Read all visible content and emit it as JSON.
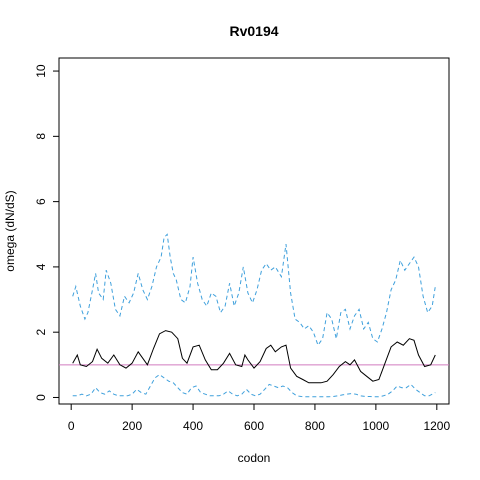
{
  "chart_data": {
    "type": "line",
    "title": "Rv0194",
    "xlabel": "codon",
    "ylabel": "omega (dN/dS)",
    "xlim": [
      -40,
      1240
    ],
    "ylim": [
      -0.2,
      10.4
    ],
    "grid": false,
    "legend": "none",
    "x_ticks": [
      0,
      200,
      400,
      600,
      800,
      1000,
      1200
    ],
    "y_ticks": [
      0,
      2,
      4,
      6,
      8,
      10
    ],
    "reference_line": {
      "y": 1.0,
      "color": "#d07bbf"
    },
    "series": [
      {
        "role": "estimate",
        "style": "solid",
        "color": "#000000",
        "x": [
          5,
          20,
          30,
          50,
          70,
          85,
          100,
          120,
          140,
          160,
          180,
          200,
          220,
          235,
          250,
          270,
          290,
          310,
          330,
          350,
          365,
          380,
          400,
          420,
          440,
          460,
          480,
          500,
          520,
          540,
          560,
          570,
          580,
          600,
          620,
          640,
          655,
          670,
          690,
          705,
          720,
          740,
          760,
          780,
          800,
          820,
          840,
          860,
          880,
          900,
          915,
          930,
          950,
          970,
          990,
          1010,
          1030,
          1050,
          1070,
          1090,
          1110,
          1125,
          1140,
          1160,
          1180,
          1195
        ],
        "y": [
          1.05,
          1.3,
          1.0,
          0.95,
          1.1,
          1.48,
          1.2,
          1.05,
          1.3,
          1.0,
          0.9,
          1.05,
          1.4,
          1.2,
          1.0,
          1.5,
          1.95,
          2.05,
          2.0,
          1.8,
          1.2,
          1.05,
          1.55,
          1.6,
          1.15,
          0.85,
          0.85,
          1.05,
          1.35,
          1.0,
          0.95,
          1.3,
          1.15,
          0.9,
          1.1,
          1.5,
          1.6,
          1.4,
          1.55,
          1.6,
          0.9,
          0.65,
          0.55,
          0.45,
          0.45,
          0.45,
          0.5,
          0.7,
          0.95,
          1.1,
          1.0,
          1.15,
          0.8,
          0.65,
          0.5,
          0.55,
          1.05,
          1.55,
          1.7,
          1.6,
          1.8,
          1.75,
          1.3,
          0.95,
          1.0,
          1.3
        ]
      },
      {
        "role": "upper-bound",
        "style": "dashed",
        "color": "#3fa0dc",
        "x": [
          5,
          15,
          30,
          45,
          55,
          70,
          80,
          90,
          105,
          115,
          130,
          145,
          160,
          175,
          190,
          205,
          220,
          235,
          250,
          265,
          280,
          295,
          305,
          315,
          325,
          335,
          345,
          360,
          375,
          390,
          400,
          415,
          430,
          445,
          460,
          475,
          490,
          505,
          520,
          535,
          550,
          565,
          580,
          595,
          610,
          625,
          640,
          655,
          670,
          690,
          705,
          720,
          735,
          750,
          765,
          780,
          795,
          810,
          825,
          840,
          855,
          870,
          885,
          900,
          915,
          930,
          945,
          960,
          975,
          990,
          1005,
          1020,
          1035,
          1050,
          1065,
          1080,
          1095,
          1110,
          1125,
          1140,
          1155,
          1170,
          1185,
          1195
        ],
        "y": [
          3.1,
          3.4,
          2.8,
          2.4,
          2.6,
          3.3,
          3.8,
          3.2,
          3.0,
          3.9,
          3.5,
          2.7,
          2.5,
          3.1,
          2.9,
          3.2,
          3.8,
          3.3,
          3.0,
          3.4,
          4.0,
          4.3,
          4.9,
          5.0,
          4.3,
          3.8,
          3.6,
          3.0,
          2.9,
          3.4,
          4.3,
          3.5,
          3.0,
          2.8,
          3.2,
          3.1,
          2.6,
          2.8,
          3.5,
          2.8,
          3.2,
          4.0,
          3.2,
          2.9,
          3.3,
          3.9,
          4.1,
          3.9,
          4.0,
          3.7,
          4.7,
          3.2,
          2.4,
          2.3,
          2.1,
          2.2,
          2.0,
          1.6,
          1.8,
          2.6,
          2.4,
          1.8,
          2.6,
          2.7,
          2.1,
          2.5,
          2.7,
          2.1,
          2.3,
          1.8,
          1.7,
          2.1,
          2.6,
          3.3,
          3.6,
          4.2,
          3.9,
          4.1,
          4.3,
          4.0,
          3.1,
          2.6,
          2.8,
          3.4
        ]
      },
      {
        "role": "lower-bound",
        "style": "dashed",
        "color": "#3fa0dc",
        "x": [
          5,
          20,
          35,
          50,
          65,
          80,
          95,
          110,
          125,
          140,
          155,
          170,
          185,
          200,
          215,
          230,
          245,
          260,
          275,
          290,
          305,
          320,
          335,
          350,
          365,
          380,
          395,
          410,
          425,
          440,
          455,
          470,
          485,
          500,
          515,
          530,
          545,
          560,
          575,
          590,
          605,
          620,
          635,
          650,
          665,
          680,
          695,
          710,
          725,
          740,
          755,
          770,
          785,
          800,
          815,
          830,
          845,
          860,
          875,
          890,
          905,
          920,
          935,
          950,
          965,
          980,
          995,
          1010,
          1025,
          1040,
          1055,
          1070,
          1085,
          1100,
          1115,
          1130,
          1145,
          1160,
          1175,
          1195
        ],
        "y": [
          0.05,
          0.05,
          0.1,
          0.05,
          0.1,
          0.3,
          0.15,
          0.1,
          0.2,
          0.1,
          0.05,
          0.05,
          0.05,
          0.1,
          0.25,
          0.15,
          0.1,
          0.35,
          0.6,
          0.7,
          0.6,
          0.5,
          0.45,
          0.3,
          0.15,
          0.1,
          0.3,
          0.35,
          0.15,
          0.1,
          0.05,
          0.05,
          0.05,
          0.1,
          0.2,
          0.1,
          0.05,
          0.1,
          0.25,
          0.1,
          0.05,
          0.1,
          0.25,
          0.4,
          0.35,
          0.3,
          0.35,
          0.3,
          0.15,
          0.05,
          0.03,
          0.02,
          0.02,
          0.02,
          0.02,
          0.02,
          0.02,
          0.03,
          0.05,
          0.08,
          0.1,
          0.12,
          0.1,
          0.05,
          0.03,
          0.03,
          0.02,
          0.02,
          0.05,
          0.1,
          0.2,
          0.35,
          0.3,
          0.3,
          0.4,
          0.25,
          0.15,
          0.05,
          0.05,
          0.15
        ]
      }
    ]
  }
}
